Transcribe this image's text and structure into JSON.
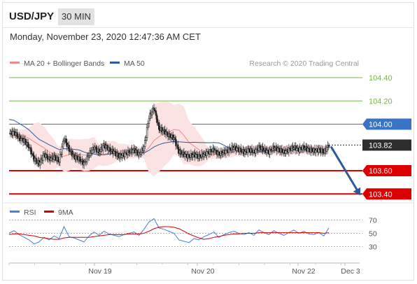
{
  "header": {
    "symbol": "USD/JPY",
    "timeframe": "30 MIN"
  },
  "timestamp": "Monday, November 23, 2020 12:47:36 AM CET",
  "chart_data": [
    {
      "type": "candlestick",
      "legend": [
        {
          "name": "MA 20 + Bollinger Bands",
          "color": "#f08a8a"
        },
        {
          "name": "MA 50",
          "color": "#2c5aa0"
        }
      ],
      "copyright": "Research © 2020 Trading Central",
      "ylim": [
        103.31,
        104.48
      ],
      "levels": [
        {
          "value": 104.4,
          "label": "104.40",
          "color": "#7ab648",
          "kind": "resistance"
        },
        {
          "value": 104.2,
          "label": "104.20",
          "color": "#7ab648",
          "kind": "resistance"
        },
        {
          "value": 104.0,
          "label": "104.00",
          "color": "#3a73c4",
          "kind": "pivot"
        },
        {
          "value": 103.82,
          "label": "103.82",
          "color": "#333333",
          "kind": "last"
        },
        {
          "value": 103.6,
          "label": "103.60",
          "color": "#dd0000",
          "kind": "support"
        },
        {
          "value": 103.4,
          "label": "103.40",
          "color": "#dd0000",
          "kind": "support"
        }
      ],
      "forecast": {
        "from": 103.82,
        "to": 103.4
      },
      "close_path": [
        103.92,
        103.93,
        103.88,
        103.86,
        103.8,
        103.7,
        103.66,
        103.74,
        103.7,
        103.72,
        103.68,
        103.88,
        103.78,
        103.72,
        103.7,
        103.66,
        103.74,
        103.8,
        103.76,
        103.82,
        103.78,
        103.76,
        103.72,
        103.74,
        103.76,
        103.78,
        103.74,
        103.8,
        104.06,
        104.14,
        103.96,
        103.94,
        103.9,
        103.88,
        103.76,
        103.74,
        103.72,
        103.74,
        103.72,
        103.74,
        103.76,
        103.78,
        103.74,
        103.76,
        103.78,
        103.8,
        103.78,
        103.76,
        103.78,
        103.76,
        103.8,
        103.78,
        103.76,
        103.8,
        103.78,
        103.76,
        103.78,
        103.8,
        103.78,
        103.8,
        103.78,
        103.77,
        103.78,
        103.76,
        103.82
      ]
    },
    {
      "type": "line",
      "legend": [
        {
          "name": "RSI",
          "color": "#4a7fdc"
        },
        {
          "name": "9MA",
          "color": "#dd0000"
        }
      ],
      "ylim": [
        20,
        80
      ],
      "yticks": [
        70,
        50,
        30
      ],
      "series": [
        {
          "name": "RSI",
          "values": [
            50,
            54,
            48,
            44,
            40,
            34,
            37,
            44,
            40,
            46,
            42,
            60,
            45,
            43,
            40,
            37,
            46,
            52,
            47,
            53,
            49,
            47,
            45,
            48,
            50,
            52,
            47,
            56,
            67,
            72,
            58,
            56,
            53,
            50,
            40,
            38,
            36,
            42,
            40,
            45,
            48,
            52,
            44,
            48,
            51,
            53,
            50,
            48,
            51,
            47,
            55,
            51,
            48,
            54,
            50,
            47,
            51,
            55,
            50,
            53,
            49,
            48,
            51,
            46,
            58
          ]
        },
        {
          "name": "9MA",
          "values": [
            48,
            49,
            49,
            48,
            47,
            46,
            44,
            43,
            42,
            41,
            41,
            43,
            44,
            44,
            44,
            44,
            44,
            45,
            46,
            47,
            48,
            48,
            48,
            48,
            49,
            49,
            49,
            50,
            53,
            57,
            59,
            60,
            60,
            59,
            57,
            53,
            49,
            46,
            43,
            41,
            42,
            44,
            45,
            47,
            48,
            49,
            49,
            50,
            50,
            50,
            51,
            51,
            51,
            51,
            51,
            51,
            51,
            51,
            51,
            51,
            51,
            51,
            51,
            50,
            51
          ]
        }
      ],
      "xticks": [
        "Nov 19",
        "Nov 20",
        "Nov 22",
        "Dec 3"
      ]
    }
  ]
}
